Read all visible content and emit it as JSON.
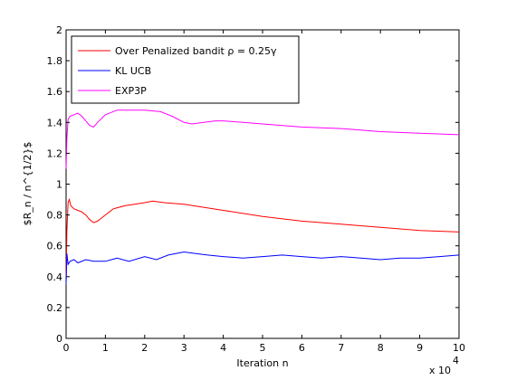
{
  "chart_data": {
    "type": "line",
    "title": "",
    "xlabel": "Iteration n",
    "ylabel": "$R_n / n^{1/2}$",
    "x_multiplier_label": "x 10",
    "x_multiplier_exp": "4",
    "xlim": [
      0,
      10
    ],
    "ylim": [
      0,
      2
    ],
    "x_ticks": [
      "0",
      "1",
      "2",
      "3",
      "4",
      "5",
      "6",
      "7",
      "8",
      "9",
      "10"
    ],
    "y_ticks": [
      "0",
      "0.2",
      "0.4",
      "0.6",
      "0.8",
      "1",
      "1.2",
      "1.4",
      "1.6",
      "1.8",
      "2"
    ],
    "legend_position": "top-left",
    "grid": false,
    "series": [
      {
        "name": "Over Penalized bandit ρ = 0.25γ",
        "color": "#ff0000",
        "x": [
          0,
          0.02,
          0.05,
          0.08,
          0.12,
          0.2,
          0.3,
          0.4,
          0.5,
          0.6,
          0.7,
          0.8,
          0.9,
          1.0,
          1.2,
          1.5,
          2.0,
          2.2,
          2.5,
          3.0,
          3.5,
          4.0,
          5.0,
          6.0,
          7.0,
          8.0,
          9.0,
          10.0
        ],
        "values": [
          0.4,
          0.7,
          0.88,
          0.9,
          0.86,
          0.84,
          0.83,
          0.82,
          0.8,
          0.77,
          0.75,
          0.76,
          0.78,
          0.8,
          0.84,
          0.86,
          0.88,
          0.89,
          0.88,
          0.87,
          0.85,
          0.83,
          0.79,
          0.76,
          0.74,
          0.72,
          0.7,
          0.69
        ]
      },
      {
        "name": "KL UCB",
        "color": "#0000ff",
        "x": [
          0,
          0.02,
          0.05,
          0.1,
          0.2,
          0.3,
          0.5,
          0.7,
          1.0,
          1.3,
          1.6,
          2.0,
          2.3,
          2.6,
          3.0,
          3.3,
          3.6,
          4.0,
          4.5,
          5.0,
          5.5,
          6.0,
          6.5,
          7.0,
          7.5,
          8.0,
          8.5,
          9.0,
          9.5,
          10.0
        ],
        "values": [
          0.35,
          0.55,
          0.48,
          0.5,
          0.51,
          0.49,
          0.51,
          0.5,
          0.5,
          0.52,
          0.5,
          0.53,
          0.51,
          0.54,
          0.56,
          0.55,
          0.54,
          0.53,
          0.52,
          0.53,
          0.54,
          0.53,
          0.52,
          0.53,
          0.52,
          0.51,
          0.52,
          0.52,
          0.53,
          0.54
        ]
      },
      {
        "name": "EXP3P",
        "color": "#ff00ff",
        "x": [
          0,
          0.02,
          0.05,
          0.1,
          0.2,
          0.3,
          0.4,
          0.5,
          0.6,
          0.7,
          0.8,
          1.0,
          1.3,
          1.6,
          2.0,
          2.4,
          2.7,
          3.0,
          3.2,
          3.5,
          3.8,
          4.0,
          4.5,
          5.0,
          6.0,
          7.0,
          8.0,
          9.0,
          10.0
        ],
        "values": [
          1.1,
          1.3,
          1.42,
          1.44,
          1.45,
          1.46,
          1.44,
          1.41,
          1.38,
          1.37,
          1.4,
          1.45,
          1.48,
          1.48,
          1.48,
          1.47,
          1.44,
          1.4,
          1.39,
          1.4,
          1.41,
          1.41,
          1.4,
          1.39,
          1.37,
          1.36,
          1.34,
          1.33,
          1.32
        ]
      }
    ]
  }
}
